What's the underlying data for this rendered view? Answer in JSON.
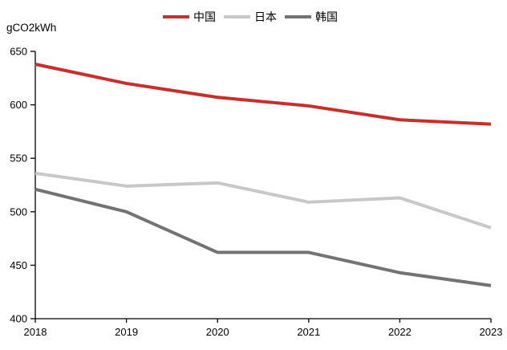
{
  "header": {
    "unit_label": "gCO2kWh"
  },
  "chart_data": {
    "type": "line",
    "x": [
      2018,
      2019,
      2020,
      2021,
      2022,
      2023
    ],
    "x_tick_labels": [
      "2018",
      "2019",
      "2020",
      "2021",
      "2022",
      "2023"
    ],
    "series": [
      {
        "name": "中国",
        "color": "#c7302a",
        "values": [
          638,
          620,
          607,
          599,
          586,
          582
        ]
      },
      {
        "name": "日本",
        "color": "#c8c8c8",
        "values": [
          536,
          524,
          527,
          509,
          513,
          485
        ]
      },
      {
        "name": "韩国",
        "color": "#737373",
        "values": [
          521,
          500,
          462,
          462,
          443,
          431
        ]
      }
    ],
    "ylabel": "gCO2kWh",
    "ylim": [
      400,
      650
    ],
    "yticks": [
      400,
      450,
      500,
      550,
      600,
      650
    ],
    "ytick_step": 50,
    "grid": false,
    "legend_position": "top-center",
    "axis_color": "#000000"
  }
}
